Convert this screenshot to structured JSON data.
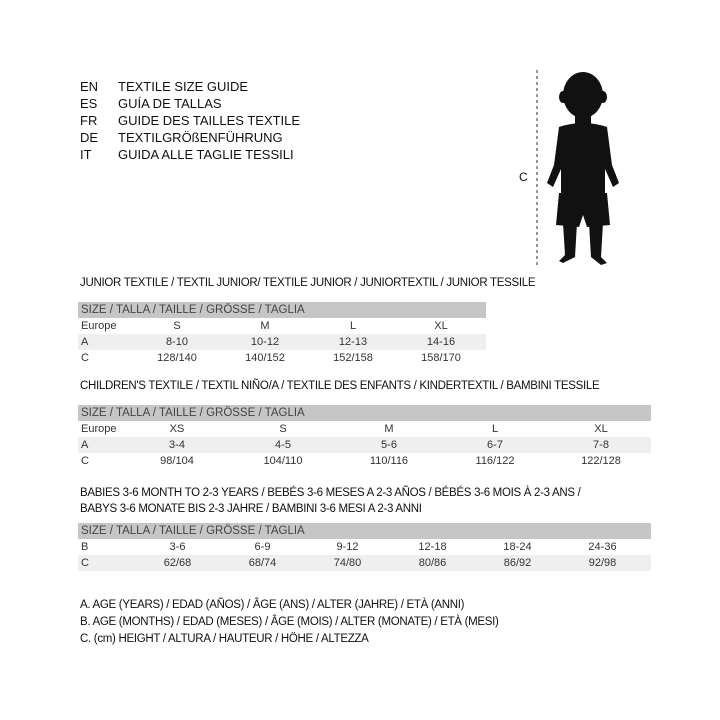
{
  "languages": [
    {
      "code": "EN",
      "text": "TEXTILE SIZE GUIDE"
    },
    {
      "code": "ES",
      "text": "GUÍA DE TALLAS"
    },
    {
      "code": "FR",
      "text": "GUIDE DES TAILLES TEXTILE"
    },
    {
      "code": "DE",
      "text": "TEXTILGRÖßENFÜHRUNG"
    },
    {
      "code": "IT",
      "text": "GUIDA ALLE TAGLIE TESSILI"
    }
  ],
  "figure": {
    "icon": "child-silhouette-icon",
    "measure_label": "C"
  },
  "junior": {
    "title": "JUNIOR TEXTILE / TEXTIL JUNIOR/ TEXTILE JUNIOR / JUNIORTEXTIL / JUNIOR TESSILE",
    "header": "SIZE / TALLA / TAILLE / GRÖSSE / TAGLIA",
    "rows": [
      [
        "Europe",
        "S",
        "M",
        "L",
        "XL"
      ],
      [
        "A",
        "8-10",
        "10-12",
        "12-13",
        "14-16"
      ],
      [
        "C",
        "128/140",
        "140/152",
        "152/158",
        "158/170"
      ]
    ]
  },
  "children": {
    "title": "CHILDREN'S TEXTILE / TEXTIL NIÑO/A / TEXTILE DES ENFANTS / KINDERTEXTIL / BAMBINI TESSILE",
    "header": "SIZE / TALLA / TAILLE / GRÖSSE / TAGLIA",
    "rows": [
      [
        "Europe",
        "XS",
        "S",
        "M",
        "L",
        "XL"
      ],
      [
        "A",
        "3-4",
        "4-5",
        "5-6",
        "6-7",
        "7-8"
      ],
      [
        "C",
        "98/104",
        "104/110",
        "110/116",
        "116/122",
        "122/128"
      ]
    ]
  },
  "babies": {
    "title_line1": "BABIES 3-6 MONTH TO 2-3 YEARS / BEBÉS 3-6 MESES A 2-3 AÑOS / BÉBÉS 3-6 MOIS À 2-3 ANS /",
    "title_line2": "BABYS 3-6 MONATE BIS 2-3 JAHRE / BAMBINI 3-6 MESI A 2-3 ANNI",
    "header": "SIZE / TALLA / TAILLE / GRÖSSE / TAGLIA",
    "rows": [
      [
        "B",
        "3-6",
        "6-9",
        "9-12",
        "12-18",
        "18-24",
        "24-36"
      ],
      [
        "C",
        "62/68",
        "68/74",
        "74/80",
        "80/86",
        "86/92",
        "92/98"
      ]
    ]
  },
  "legend": [
    "A. AGE (YEARS) / EDAD (AÑOS) / ÂGE (ANS) / ALTER (JAHRE) / ETÀ (ANNI)",
    "B. AGE (MONTHS) / EDAD (MESES) / ÂGE (MOIS) / ALTER (MONATE) / ETÀ (MESI)",
    "C. (cm) HEIGHT / ALTURA / HAUTEUR / HÖHE / ALTEZZA"
  ]
}
